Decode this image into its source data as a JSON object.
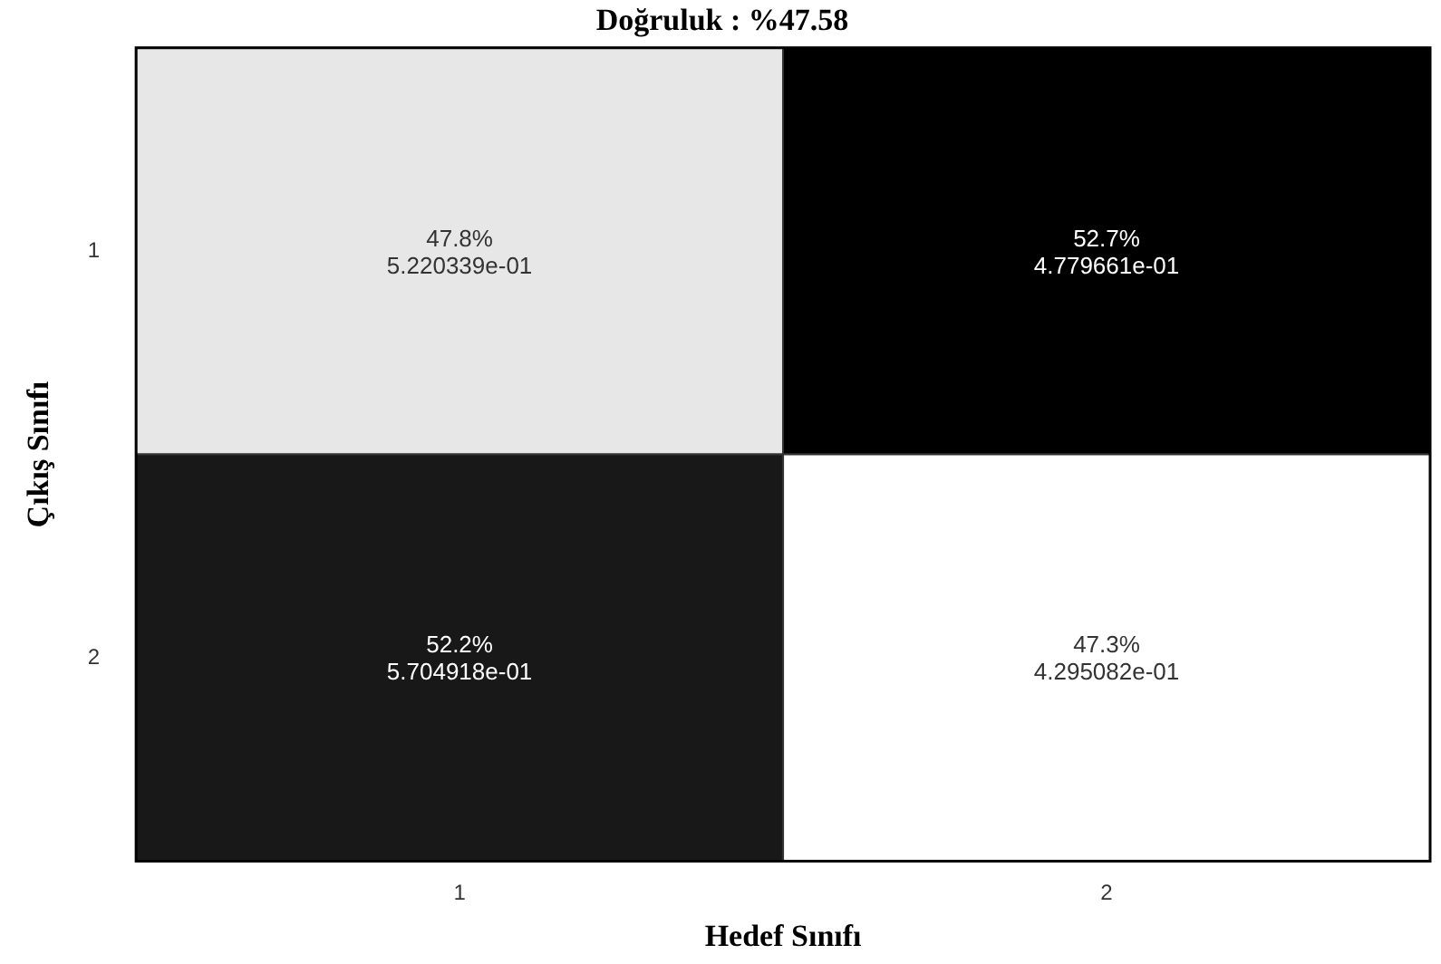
{
  "chart_data": {
    "type": "heatmap",
    "title": "Doğruluk : %47.58",
    "xlabel": "Hedef Sınıfı",
    "ylabel": "Çıkış Sınıfı",
    "categories": [
      "1",
      "2"
    ],
    "y_categories": [
      "1",
      "2"
    ],
    "cells": [
      [
        47.8,
        52.7
      ],
      [
        52.2,
        47.3
      ]
    ],
    "cell_labels": [
      [
        "47.8%",
        "52.7%"
      ],
      [
        "52.2%",
        "47.3%"
      ]
    ],
    "annotations": [
      "5.220339e-01",
      "4.779661e-01",
      "5.704918e-01",
      "4.295082e-01"
    ]
  }
}
